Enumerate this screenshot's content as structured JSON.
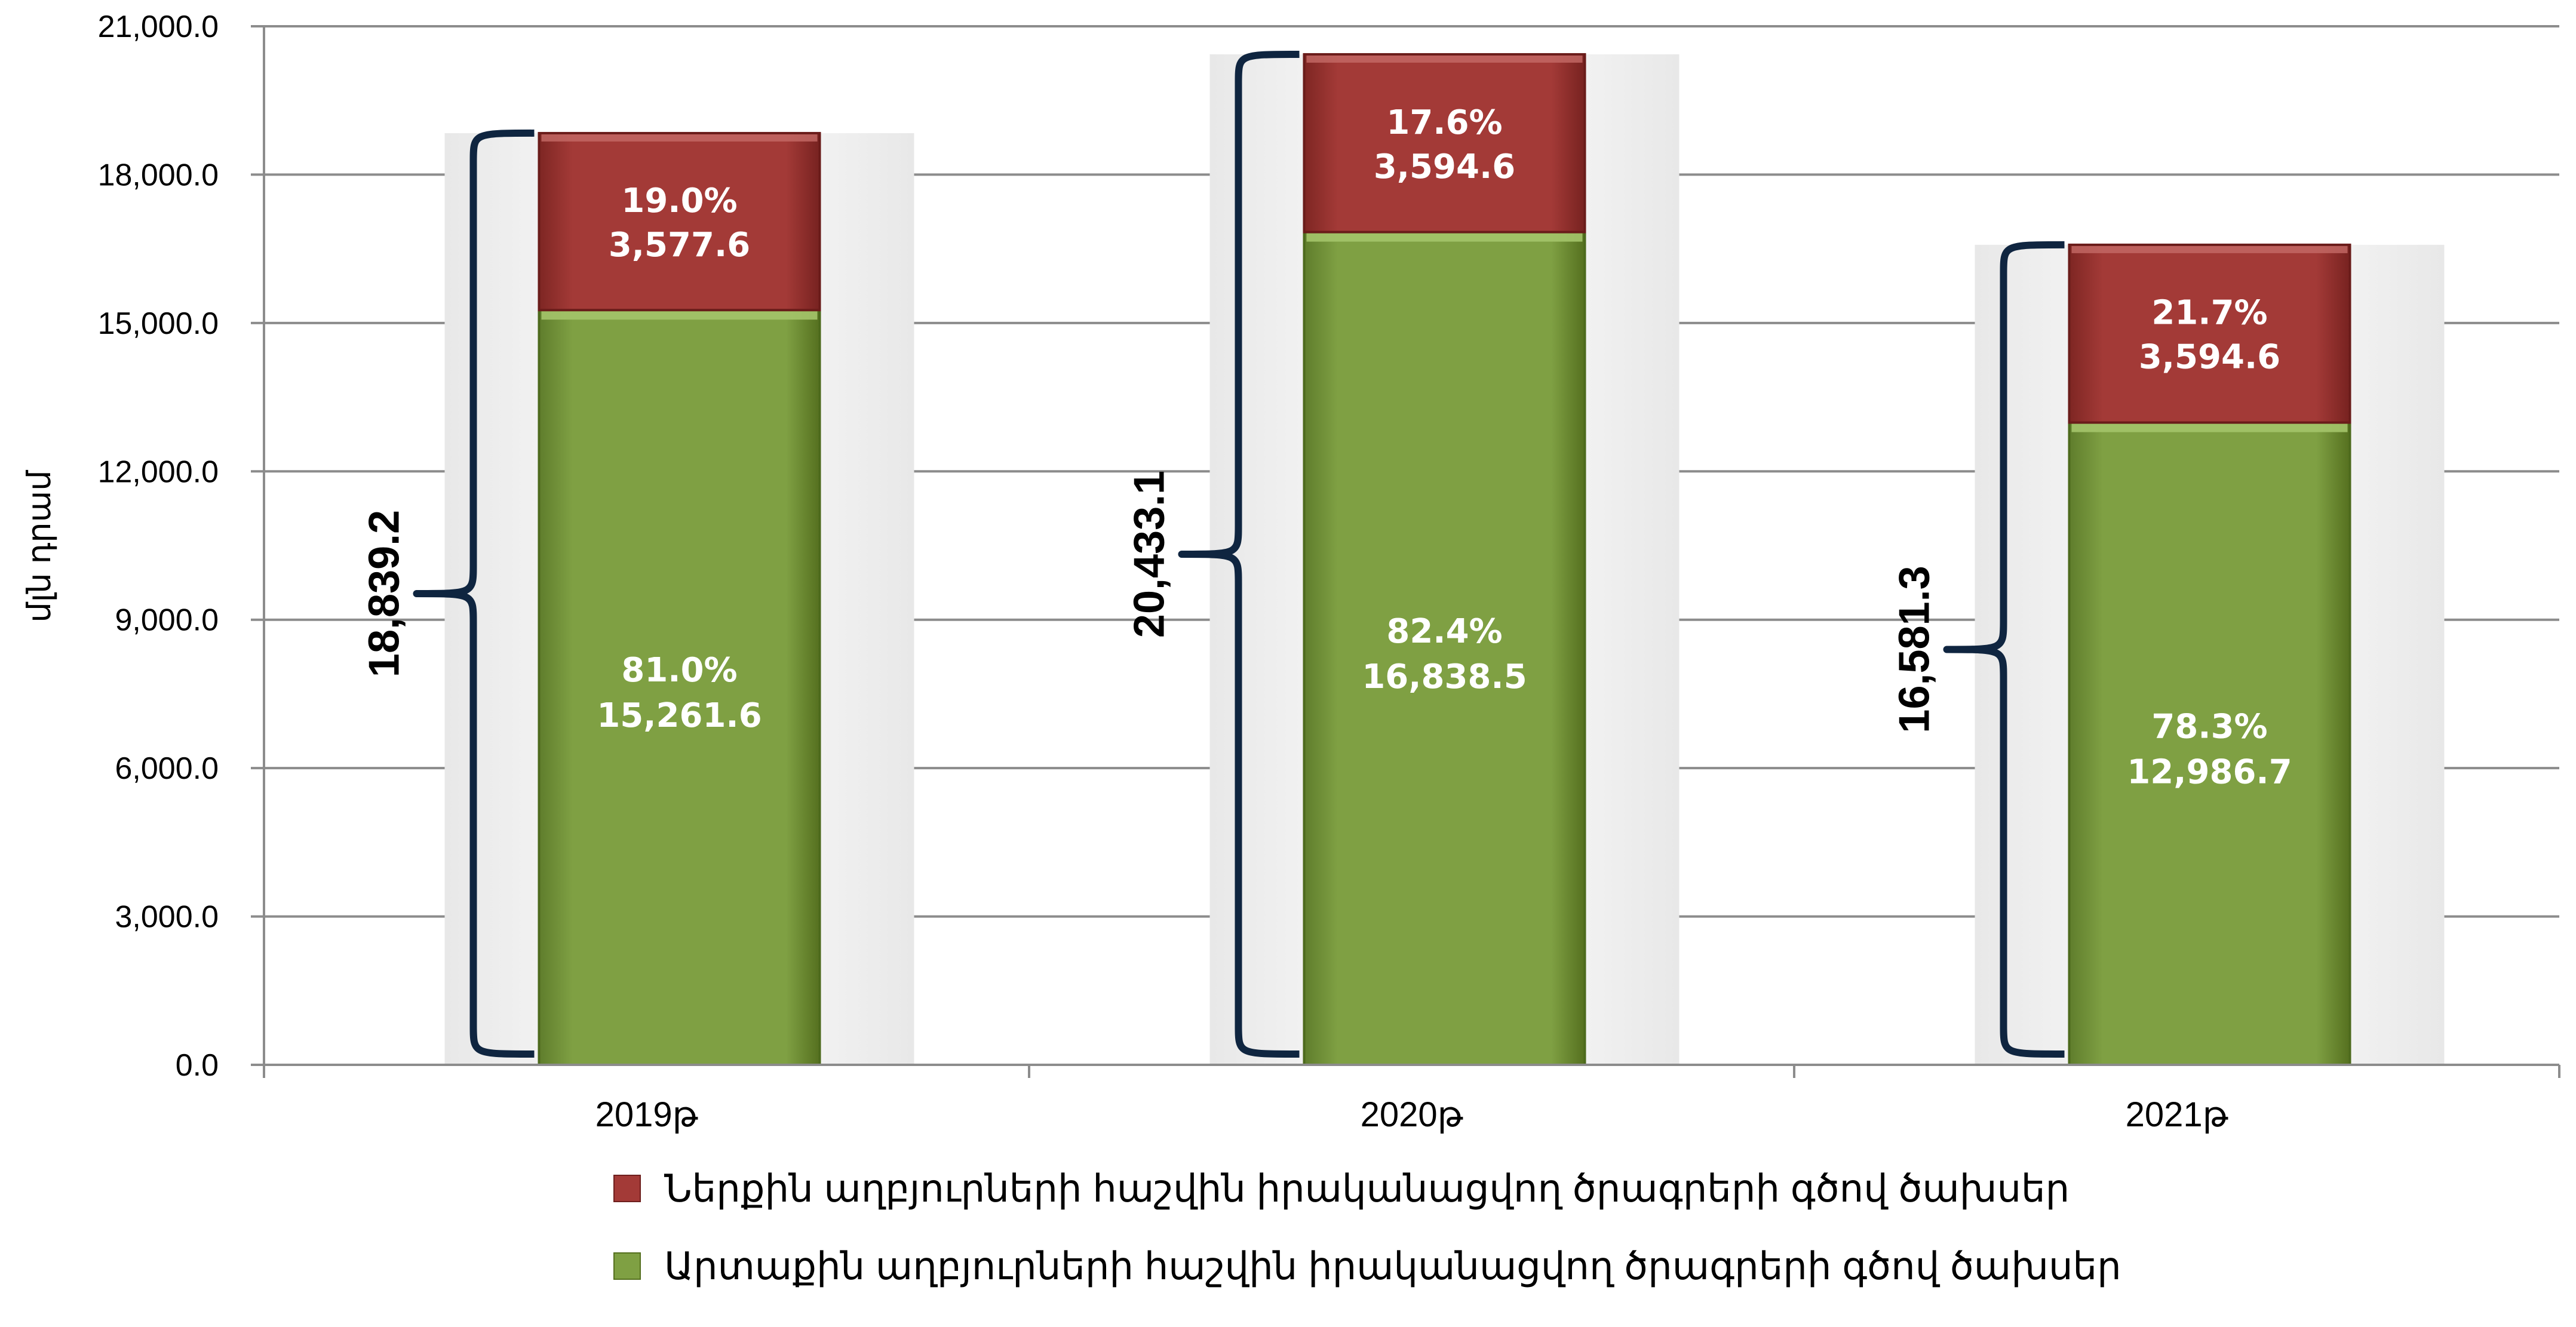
{
  "chart_data": {
    "type": "bar",
    "stacked": true,
    "ylabel": "մլն դրամ",
    "ylim": [
      0,
      21000
    ],
    "yticks": [
      "0.0",
      "3,000.0",
      "6,000.0",
      "9,000.0",
      "12,000.0",
      "15,000.0",
      "18,000.0",
      "21,000.0"
    ],
    "grid": true,
    "legend_position": "bottom",
    "categories": [
      "2019թ",
      "2020թ",
      "2021թ"
    ],
    "totals": [
      18839.2,
      20433.1,
      16581.3
    ],
    "total_labels": [
      "18,839.2",
      "20,433.1",
      "16,581.3"
    ],
    "series": [
      {
        "name": "Արտաքին աղբյուրների հաշվին իրականացվող ծրագրերի գծով ծախսեր",
        "color": "#7fa043",
        "values": [
          15261.6,
          16838.5,
          12986.7
        ],
        "value_labels": [
          "15,261.6",
          "16,838.5",
          "12,986.7"
        ],
        "share_labels": [
          "81.0%",
          "82.4%",
          "78.3%"
        ]
      },
      {
        "name": "Ներքին աղբյուրների հաշվին իրականացվող ծրագրերի գծով ծախսեր",
        "color": "#a33a37",
        "values": [
          3577.6,
          3594.6,
          3594.6
        ],
        "value_labels": [
          "3,577.6",
          "3,594.6",
          "3,594.6"
        ],
        "share_labels": [
          "19.0%",
          "17.6%",
          "21.7%"
        ]
      }
    ]
  }
}
